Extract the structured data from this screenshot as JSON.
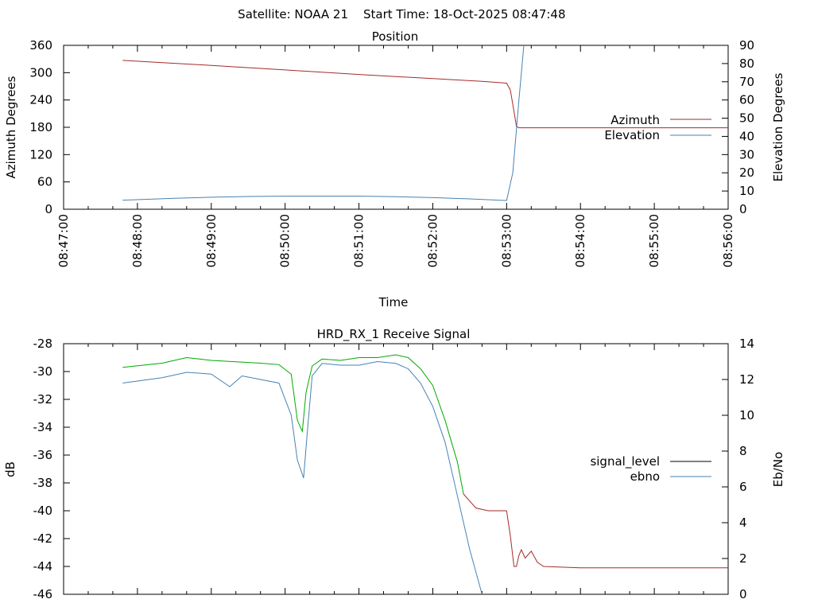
{
  "header": {
    "satellite_label": "Satellite: NOAA 21",
    "start_time_label": "Start Time: 18-Oct-2025 08:47:48"
  },
  "chart_data": [
    {
      "type": "line",
      "title": "Position",
      "xlabel": "Time",
      "ylabel": "Azimuth Degrees",
      "y2label": "Elevation Degrees",
      "x_ticks": [
        "08:47:00",
        "08:48:00",
        "08:49:00",
        "08:50:00",
        "08:51:00",
        "08:52:00",
        "08:53:00",
        "08:54:00",
        "08:55:00",
        "08:56:00"
      ],
      "xlim": [
        "08:47:00",
        "08:56:00"
      ],
      "ylim": [
        0,
        360
      ],
      "y_ticks": [
        0,
        60,
        120,
        180,
        240,
        300,
        360
      ],
      "y2lim": [
        0,
        90
      ],
      "y2_ticks": [
        0,
        10,
        20,
        30,
        40,
        50,
        60,
        70,
        80,
        90
      ],
      "legend_position": "right",
      "grid": false,
      "series": [
        {
          "name": "Azimuth",
          "axis": "y",
          "color": "#a52a2a",
          "x": [
            "08:47:48",
            "08:49:00",
            "08:50:00",
            "08:51:00",
            "08:52:00",
            "08:52:40",
            "08:53:00",
            "08:53:03",
            "08:53:06",
            "08:53:08",
            "08:53:10",
            "08:56:00"
          ],
          "y": [
            327,
            316,
            306,
            296,
            287,
            281,
            277,
            262,
            215,
            182,
            179,
            179
          ]
        },
        {
          "name": "Elevation",
          "axis": "y2",
          "color": "#4682b4",
          "x": [
            "08:47:48",
            "08:48:30",
            "08:49:00",
            "08:49:30",
            "08:50:00",
            "08:51:00",
            "08:51:30",
            "08:52:00",
            "08:52:30",
            "08:53:00",
            "08:53:05",
            "08:53:10",
            "08:53:14"
          ],
          "y": [
            5,
            6,
            6.6,
            7,
            7.2,
            7.2,
            6.9,
            6.4,
            5.7,
            4.8,
            20,
            60,
            90
          ]
        }
      ]
    },
    {
      "type": "line",
      "title": "HRD_RX_1 Receive Signal",
      "xlabel": "",
      "ylabel": "dB",
      "y2label": "Eb/No",
      "xlim": [
        "08:47:00",
        "08:56:00"
      ],
      "ylim": [
        -46,
        -28
      ],
      "y_ticks": [
        -46,
        -44,
        -42,
        -40,
        -38,
        -36,
        -34,
        -32,
        -30,
        -28
      ],
      "y2lim": [
        0,
        14
      ],
      "y2_ticks": [
        0,
        2,
        4,
        6,
        8,
        10,
        12,
        14
      ],
      "legend_position": "right",
      "grid": false,
      "series": [
        {
          "name": "signal_level",
          "axis": "y",
          "color": "#000000",
          "segments": [
            {
              "color": "#00aa00",
              "x": [
                "08:47:48",
                "08:48:20",
                "08:48:40",
                "08:49:00",
                "08:49:20",
                "08:49:40",
                "08:49:55",
                "08:50:05",
                "08:50:10",
                "08:50:14",
                "08:50:17",
                "08:50:22",
                "08:50:30",
                "08:50:45",
                "08:51:00",
                "08:51:15",
                "08:51:30",
                "08:51:40",
                "08:51:50",
                "08:52:00",
                "08:52:10",
                "08:52:20",
                "08:52:25"
              ],
              "y": [
                -29.7,
                -29.4,
                -29.0,
                -29.2,
                -29.3,
                -29.4,
                -29.5,
                -30.2,
                -33.5,
                -34.3,
                -31.5,
                -29.6,
                -29.1,
                -29.2,
                -29.0,
                -29.0,
                -28.8,
                -29.0,
                -29.8,
                -31.0,
                -33.5,
                -36.5,
                -38.8
              ]
            },
            {
              "color": "#a52a2a",
              "x": [
                "08:52:25",
                "08:52:35",
                "08:52:45",
                "08:53:00",
                "08:53:03",
                "08:53:06",
                "08:53:08",
                "08:53:10",
                "08:53:12",
                "08:53:15",
                "08:53:20",
                "08:53:25",
                "08:53:30",
                "08:54:00",
                "08:55:00",
                "08:56:00"
              ],
              "y": [
                -38.8,
                -39.8,
                -40.0,
                -40.0,
                -41.8,
                -44.0,
                -44.0,
                -43.2,
                -42.8,
                -43.4,
                -42.9,
                -43.7,
                -44.0,
                -44.1,
                -44.1,
                -44.1
              ]
            }
          ]
        },
        {
          "name": "ebno",
          "axis": "y2",
          "color": "#4682b4",
          "x": [
            "08:47:48",
            "08:48:20",
            "08:48:40",
            "08:49:00",
            "08:49:15",
            "08:49:25",
            "08:49:40",
            "08:49:55",
            "08:50:05",
            "08:50:10",
            "08:50:15",
            "08:50:18",
            "08:50:22",
            "08:50:30",
            "08:50:45",
            "08:51:00",
            "08:51:15",
            "08:51:30",
            "08:51:40",
            "08:51:50",
            "08:52:00",
            "08:52:10",
            "08:52:20",
            "08:52:30",
            "08:52:40"
          ],
          "y": [
            11.8,
            12.1,
            12.4,
            12.3,
            11.6,
            12.2,
            12.0,
            11.8,
            10.0,
            7.5,
            6.5,
            9.0,
            12.2,
            12.9,
            12.8,
            12.8,
            13.0,
            12.9,
            12.6,
            11.8,
            10.5,
            8.5,
            5.5,
            2.5,
            0.0
          ]
        }
      ]
    }
  ]
}
